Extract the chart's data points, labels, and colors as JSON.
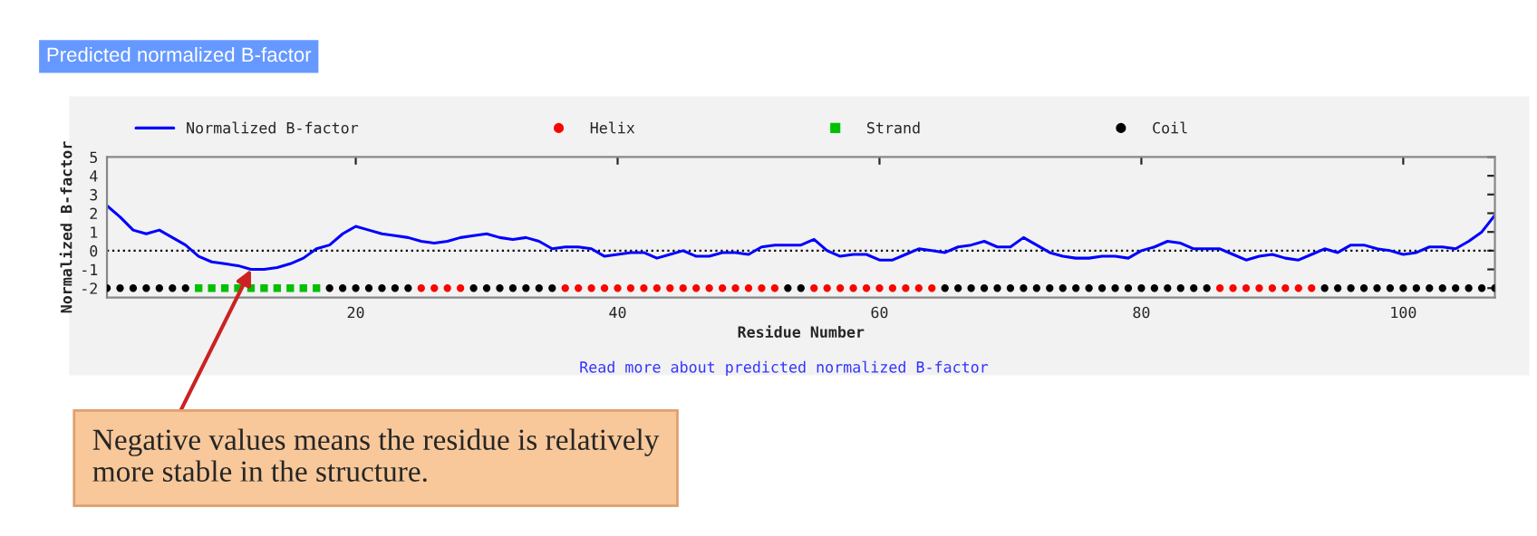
{
  "chart_data": {
    "type": "line",
    "title": "Predicted normalized B-factor",
    "xlabel": "Residue Number",
    "ylabel": "Normalized B-factor",
    "xlim": [
      1,
      107
    ],
    "xticks": [
      20,
      40,
      60,
      80,
      100
    ],
    "ylim": [
      -2.5,
      5
    ],
    "yticks": [
      -2,
      -1,
      0,
      1,
      2,
      3,
      4,
      5
    ],
    "legend": "top",
    "grid": false,
    "ref_lines": [
      {
        "axis": "y",
        "value": 0,
        "color": "#000000",
        "line_style": "dotted"
      }
    ],
    "annotations": [
      "Read more about predicted normalized B-factor",
      {
        "text": "Negative values means the residue is relatively\nmore stable in the structure.",
        "x": 12,
        "y": -1.0
      }
    ],
    "series": [
      {
        "name": "Normalized B-factor",
        "color": "#0000ff",
        "line_style": "solid",
        "marker": "none",
        "x": [
          1,
          2,
          3,
          4,
          5,
          6,
          7,
          8,
          9,
          10,
          11,
          12,
          13,
          14,
          15,
          16,
          17,
          18,
          19,
          20,
          21,
          22,
          23,
          24,
          25,
          26,
          27,
          28,
          29,
          30,
          31,
          32,
          33,
          34,
          35,
          36,
          37,
          38,
          39,
          40,
          41,
          42,
          43,
          44,
          45,
          46,
          47,
          48,
          49,
          50,
          51,
          52,
          53,
          54,
          55,
          56,
          57,
          58,
          59,
          60,
          61,
          62,
          63,
          64,
          65,
          66,
          67,
          68,
          69,
          70,
          71,
          72,
          73,
          74,
          75,
          76,
          77,
          78,
          79,
          80,
          81,
          82,
          83,
          84,
          85,
          86,
          87,
          88,
          89,
          90,
          91,
          92,
          93,
          94,
          95,
          96,
          97,
          98,
          99,
          100,
          101,
          102,
          103,
          104,
          105,
          106,
          107
        ],
        "values": [
          2.4,
          1.8,
          1.1,
          0.9,
          1.1,
          0.7,
          0.3,
          -0.3,
          -0.6,
          -0.7,
          -0.8,
          -1.0,
          -1.0,
          -0.9,
          -0.7,
          -0.4,
          0.1,
          0.3,
          0.9,
          1.3,
          1.1,
          0.9,
          0.8,
          0.7,
          0.5,
          0.4,
          0.5,
          0.7,
          0.8,
          0.9,
          0.7,
          0.6,
          0.7,
          0.5,
          0.1,
          0.2,
          0.2,
          0.1,
          -0.3,
          -0.2,
          -0.1,
          -0.1,
          -0.4,
          -0.2,
          0.0,
          -0.3,
          -0.3,
          -0.1,
          -0.1,
          -0.2,
          0.2,
          0.3,
          0.3,
          0.3,
          0.6,
          0.0,
          -0.3,
          -0.2,
          -0.2,
          -0.5,
          -0.5,
          -0.2,
          0.1,
          0.0,
          -0.1,
          0.2,
          0.3,
          0.5,
          0.2,
          0.2,
          0.7,
          0.3,
          -0.1,
          -0.3,
          -0.4,
          -0.4,
          -0.3,
          -0.3,
          -0.4,
          0.0,
          0.2,
          0.5,
          0.4,
          0.1,
          0.1,
          0.1,
          -0.2,
          -0.5,
          -0.3,
          -0.2,
          -0.4,
          -0.5,
          -0.2,
          0.1,
          -0.1,
          0.3,
          0.3,
          0.1,
          0.0,
          -0.2,
          -0.1,
          0.2,
          0.2,
          0.1,
          0.5,
          1.0,
          1.9
        ]
      },
      {
        "name": "Helix",
        "type": "scatter",
        "color": "#ff0000",
        "marker": "circle",
        "x": [
          25,
          26,
          27,
          28,
          36,
          37,
          38,
          39,
          40,
          41,
          42,
          43,
          44,
          45,
          46,
          47,
          48,
          49,
          50,
          51,
          52,
          55,
          56,
          57,
          58,
          59,
          60,
          61,
          62,
          63,
          64,
          86,
          87,
          88,
          89,
          90,
          91,
          92,
          93
        ],
        "values": [
          -2,
          -2,
          -2,
          -2,
          -2,
          -2,
          -2,
          -2,
          -2,
          -2,
          -2,
          -2,
          -2,
          -2,
          -2,
          -2,
          -2,
          -2,
          -2,
          -2,
          -2,
          -2,
          -2,
          -2,
          -2,
          -2,
          -2,
          -2,
          -2,
          -2,
          -2,
          -2,
          -2,
          -2,
          -2,
          -2,
          -2,
          -2,
          -2
        ]
      },
      {
        "name": "Strand",
        "type": "scatter",
        "color": "#00c000",
        "marker": "square",
        "x": [
          8,
          9,
          10,
          11,
          12,
          13,
          14,
          15,
          16,
          17
        ],
        "values": [
          -2,
          -2,
          -2,
          -2,
          -2,
          -2,
          -2,
          -2,
          -2,
          -2
        ]
      },
      {
        "name": "Coil",
        "type": "scatter",
        "color": "#000000",
        "marker": "circle",
        "x": [
          1,
          2,
          3,
          4,
          5,
          6,
          7,
          18,
          19,
          20,
          21,
          22,
          23,
          24,
          29,
          30,
          31,
          32,
          33,
          34,
          35,
          53,
          54,
          65,
          66,
          67,
          68,
          69,
          70,
          71,
          72,
          73,
          74,
          75,
          76,
          77,
          78,
          79,
          80,
          81,
          82,
          83,
          84,
          85,
          94,
          95,
          96,
          97,
          98,
          99,
          100,
          101,
          102,
          103,
          104,
          105,
          106,
          107
        ],
        "values": [
          -2,
          -2,
          -2,
          -2,
          -2,
          -2,
          -2,
          -2,
          -2,
          -2,
          -2,
          -2,
          -2,
          -2,
          -2,
          -2,
          -2,
          -2,
          -2,
          -2,
          -2,
          -2,
          -2,
          -2,
          -2,
          -2,
          -2,
          -2,
          -2,
          -2,
          -2,
          -2,
          -2,
          -2,
          -2,
          -2,
          -2,
          -2,
          -2,
          -2,
          -2,
          -2,
          -2,
          -2,
          -2,
          -2,
          -2,
          -2,
          -2,
          -2,
          -2,
          -2,
          -2,
          -2,
          -2,
          -2,
          -2,
          -2
        ]
      }
    ]
  }
}
